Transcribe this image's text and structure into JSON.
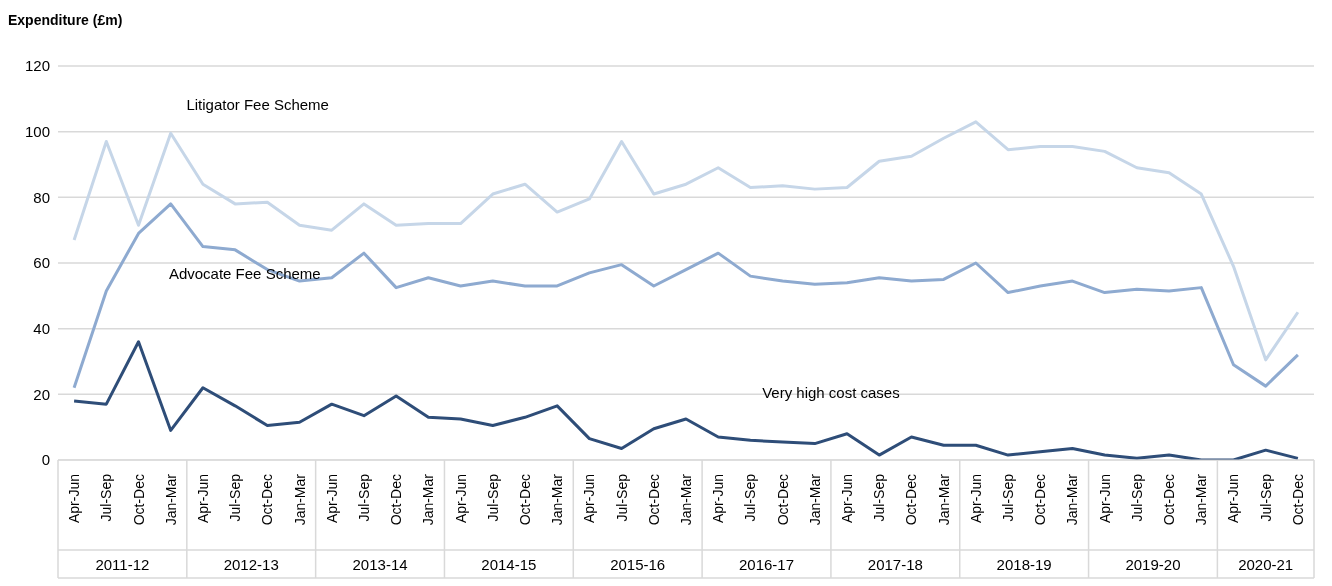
{
  "chart_data": {
    "type": "line",
    "ylabel": "Expenditure (£m)",
    "categories": [
      "Apr-Jun",
      "Jul-Sep",
      "Oct-Dec",
      "Jan-Mar",
      "Apr-Jun",
      "Jul-Sep",
      "Oct-Dec",
      "Jan-Mar",
      "Apr-Jun",
      "Jul-Sep",
      "Oct-Dec",
      "Jan-Mar",
      "Apr-Jun",
      "Jul-Sep",
      "Oct-Dec",
      "Jan-Mar",
      "Apr-Jun",
      "Jul-Sep",
      "Oct-Dec",
      "Jan-Mar",
      "Apr-Jun",
      "Jul-Sep",
      "Oct-Dec",
      "Jan-Mar",
      "Apr-Jun",
      "Jul-Sep",
      "Oct-Dec",
      "Jan-Mar",
      "Apr-Jun",
      "Jul-Sep",
      "Oct-Dec",
      "Jan-Mar",
      "Apr-Jun",
      "Jul-Sep",
      "Oct-Dec",
      "Jan-Mar",
      "Apr-Jun",
      "Jul-Sep",
      "Oct-Dec"
    ],
    "annotations": [
      "2011-12",
      "2012-13",
      "2013-14",
      "2014-15",
      "2015-16",
      "2016-17",
      "2017-18",
      "2018-19",
      "2019-20",
      "2020-21"
    ],
    "series": [
      {
        "name": "Litigator Fee Scheme",
        "color": "#c6d6e8",
        "values": [
          67,
          97,
          71.5,
          99.5,
          84,
          78,
          78.5,
          71.5,
          70,
          78,
          71.5,
          72,
          72,
          81,
          84,
          75.5,
          79.5,
          97,
          81,
          84,
          89,
          83,
          83.5,
          82.5,
          83,
          91,
          92.5,
          98,
          103,
          94.5,
          95.5,
          95.5,
          94,
          89,
          87.5,
          81,
          59,
          30.5,
          45
        ]
      },
      {
        "name": "Advocate Fee Scheme",
        "color": "#8eaad0",
        "values": [
          22,
          51.5,
          69,
          78,
          65,
          64,
          58,
          54.5,
          55.5,
          63,
          52.5,
          55.5,
          53,
          54.5,
          53,
          53,
          57,
          59.5,
          53,
          58,
          63,
          56,
          54.5,
          53.5,
          54,
          55.5,
          54.5,
          55,
          60,
          51,
          53,
          54.5,
          51,
          52,
          51.5,
          52.5,
          29,
          22.5,
          32
        ]
      },
      {
        "name": "Very high cost cases",
        "color": "#2e4d78",
        "values": [
          18,
          17,
          36,
          9,
          22,
          16.5,
          10.5,
          11.5,
          17,
          13.5,
          19.5,
          13,
          12.5,
          10.5,
          13,
          16.5,
          6.5,
          3.5,
          9.5,
          12.5,
          7,
          6,
          5.5,
          5,
          8,
          1.5,
          7,
          4.5,
          4.5,
          1.5,
          2.5,
          3.5,
          1.5,
          0.5,
          1.5,
          0,
          0,
          3,
          0.5
        ]
      }
    ],
    "ylim": [
      0,
      120
    ],
    "yticks": [
      0,
      20,
      40,
      60,
      80,
      100,
      120
    ],
    "grid": "y"
  }
}
